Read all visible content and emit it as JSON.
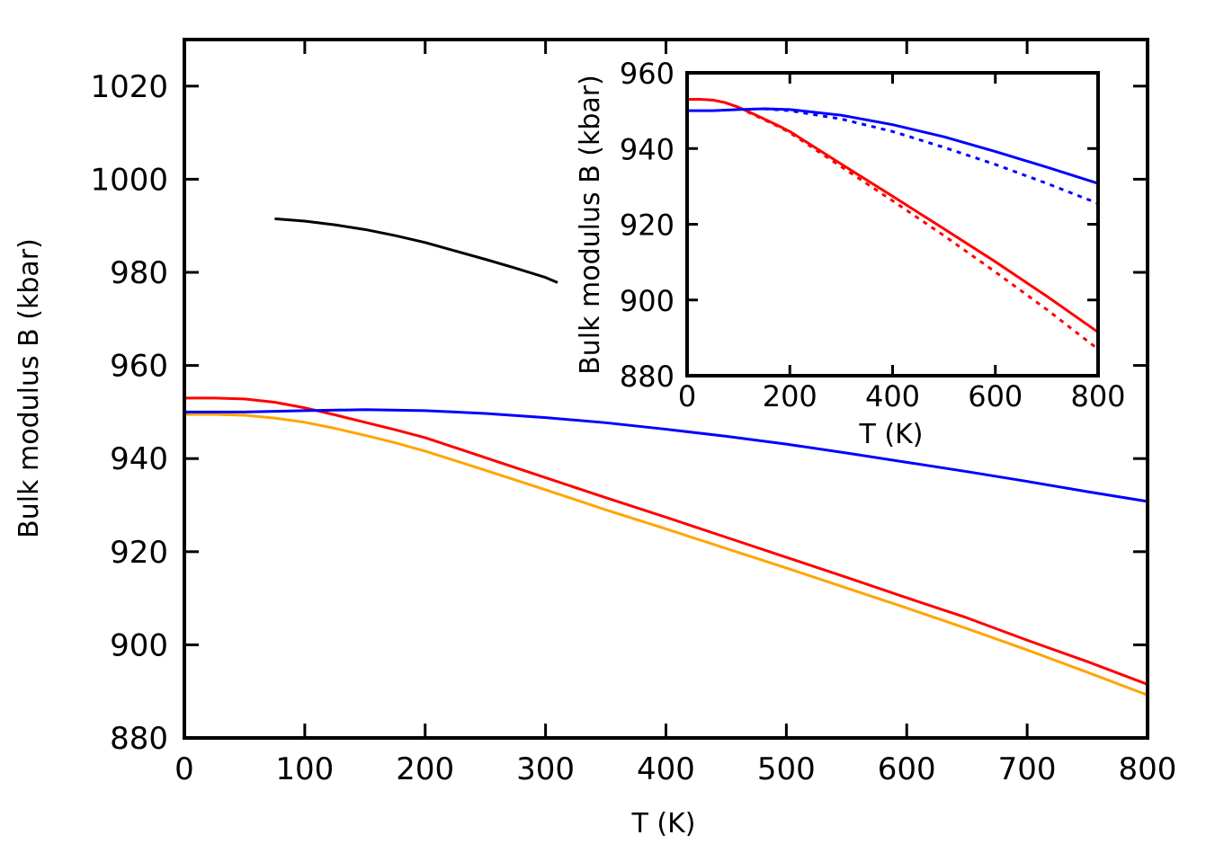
{
  "chart_data": [
    {
      "type": "line",
      "title": "",
      "xlabel": "T (K)",
      "ylabel": "Bulk modulus B (kbar)",
      "xlim": [
        0,
        800
      ],
      "ylim": [
        880,
        1030
      ],
      "xticks": [
        0,
        100,
        200,
        300,
        400,
        500,
        600,
        700,
        800
      ],
      "yticks": [
        880,
        900,
        920,
        940,
        960,
        980,
        1000,
        1020
      ],
      "grid": false,
      "legend": "none",
      "series": [
        {
          "color": "#000000",
          "dash": "solid",
          "x": [
            75,
            100,
            125,
            150,
            175,
            200,
            225,
            250,
            275,
            300,
            310
          ],
          "y": [
            991.5,
            991.0,
            990.2,
            989.2,
            987.9,
            986.4,
            984.6,
            982.8,
            980.9,
            978.9,
            977.8
          ]
        },
        {
          "color": "#ff0000",
          "dash": "solid",
          "x": [
            0,
            25,
            50,
            75,
            100,
            125,
            150,
            175,
            200,
            250,
            300,
            350,
            400,
            450,
            500,
            550,
            600,
            650,
            700,
            750,
            800
          ],
          "y": [
            953.0,
            953.0,
            952.8,
            952.1,
            950.9,
            949.4,
            947.8,
            946.2,
            944.5,
            940.2,
            935.9,
            931.6,
            927.4,
            923.1,
            918.8,
            914.5,
            910.1,
            905.8,
            901.0,
            896.4,
            891.5
          ]
        },
        {
          "color": "#ffa500",
          "dash": "solid",
          "x": [
            0,
            25,
            50,
            75,
            100,
            125,
            150,
            175,
            200,
            250,
            300,
            350,
            400,
            450,
            500,
            550,
            600,
            650,
            700,
            750,
            800
          ],
          "y": [
            949.5,
            949.5,
            949.3,
            948.7,
            947.8,
            946.5,
            945.0,
            943.4,
            941.6,
            937.5,
            933.3,
            929.0,
            924.9,
            920.7,
            916.5,
            912.2,
            907.9,
            903.5,
            898.9,
            894.1,
            889.2
          ]
        },
        {
          "color": "#0000ff",
          "dash": "solid",
          "x": [
            0,
            50,
            100,
            150,
            200,
            250,
            300,
            350,
            400,
            450,
            500,
            550,
            600,
            650,
            700,
            750,
            800
          ],
          "y": [
            950.0,
            950.0,
            950.3,
            950.5,
            950.3,
            949.7,
            948.8,
            947.7,
            946.3,
            944.8,
            943.1,
            941.2,
            939.2,
            937.2,
            935.1,
            932.9,
            930.8
          ]
        }
      ]
    },
    {
      "type": "line",
      "title": "",
      "xlabel": "T (K)",
      "ylabel": "Bulk modulus B (kbar)",
      "xlim": [
        0,
        800
      ],
      "ylim": [
        880,
        960
      ],
      "xticks": [
        0,
        200,
        400,
        600,
        800
      ],
      "yticks": [
        880,
        900,
        920,
        940,
        960
      ],
      "grid": false,
      "legend": "none",
      "series": [
        {
          "color": "#ff0000",
          "dash": "solid",
          "x": [
            0,
            25,
            50,
            75,
            100,
            125,
            150,
            175,
            200,
            300,
            400,
            500,
            600,
            700,
            800
          ],
          "y": [
            953.0,
            953.0,
            952.8,
            952.1,
            950.9,
            949.4,
            947.8,
            946.2,
            944.5,
            935.9,
            927.4,
            918.8,
            910.1,
            901.0,
            891.5
          ]
        },
        {
          "color": "#ff0000",
          "dash": "dotted",
          "x": [
            100,
            125,
            150,
            175,
            200,
            300,
            400,
            500,
            600,
            700,
            800
          ],
          "y": [
            950.9,
            949.2,
            947.6,
            946.0,
            944.2,
            935.2,
            926.2,
            917.0,
            907.4,
            897.5,
            887.0
          ]
        },
        {
          "color": "#0000ff",
          "dash": "solid",
          "x": [
            0,
            50,
            100,
            150,
            200,
            300,
            400,
            500,
            600,
            700,
            800
          ],
          "y": [
            950.0,
            950.0,
            950.3,
            950.5,
            950.3,
            948.8,
            946.3,
            943.1,
            939.2,
            935.1,
            930.8
          ]
        },
        {
          "color": "#0000ff",
          "dash": "dotted",
          "x": [
            150,
            200,
            300,
            400,
            500,
            600,
            700,
            800
          ],
          "y": [
            950.5,
            950.0,
            947.8,
            944.5,
            940.3,
            935.8,
            930.8,
            925.5
          ]
        }
      ]
    }
  ]
}
